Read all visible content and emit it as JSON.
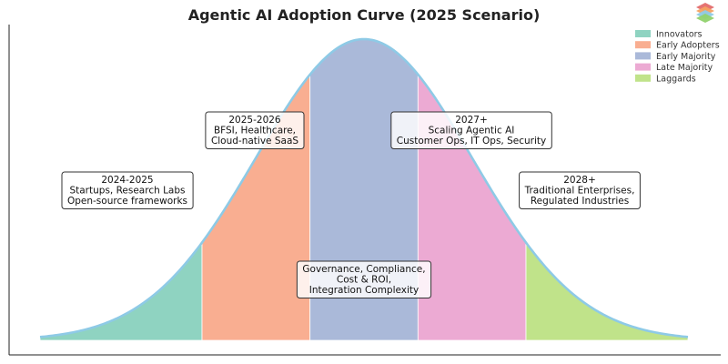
{
  "chart_data": {
    "type": "area",
    "title": "Agentic AI Adoption Curve (2025 Scenario)",
    "xlabel": "",
    "ylabel": "",
    "grid": false,
    "legend_position": "top-right",
    "distribution": "normal",
    "xlim": [
      -3,
      3
    ],
    "boundaries": [
      -3,
      -1.5,
      -0.5,
      0.5,
      1.5,
      3
    ],
    "segments": [
      {
        "name": "Innovators",
        "color": "#8fd3c1"
      },
      {
        "name": "Early Adopters",
        "color": "#f9ae91"
      },
      {
        "name": "Early Majority",
        "color": "#aab9d9"
      },
      {
        "name": "Late Majority",
        "color": "#ecaad3"
      },
      {
        "name": "Laggards",
        "color": "#c0e38a"
      }
    ],
    "curve_color": "#8ecae6",
    "annotations": [
      {
        "lines": [
          "2024-2025",
          "Startups, Research Labs",
          "Open-source frameworks"
        ]
      },
      {
        "lines": [
          "2025-2026",
          "BFSI, Healthcare,",
          "Cloud-native SaaS"
        ]
      },
      {
        "lines": [
          "2027+",
          "Scaling Agentic AI",
          "Customer Ops, IT Ops, Security"
        ]
      },
      {
        "lines": [
          "2028+",
          "Traditional Enterprises,",
          "Regulated Industries"
        ]
      },
      {
        "lines": [
          "Governance, Compliance,",
          "Cost & ROI,",
          "Integration Complexity"
        ]
      }
    ]
  }
}
